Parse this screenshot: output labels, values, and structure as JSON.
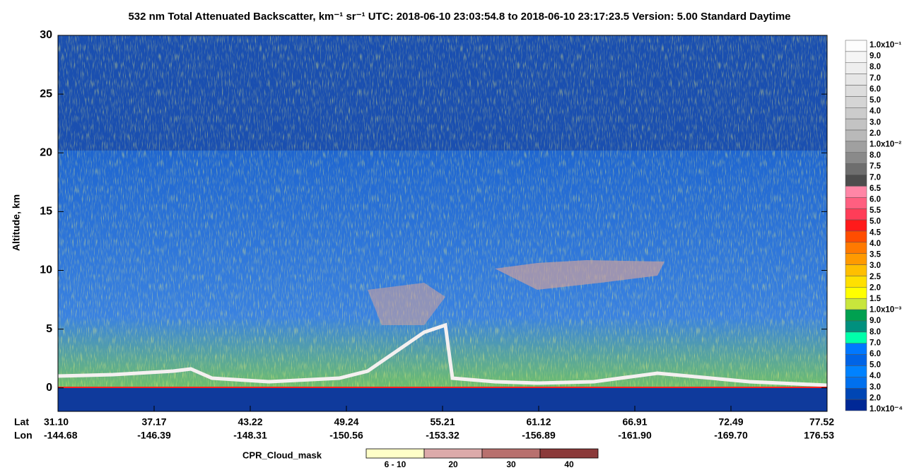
{
  "chart_data": {
    "type": "heatmap",
    "title": "532 nm Total Attenuated Backscatter, km⁻¹ sr⁻¹    UTC:  2018-06-10 23:03:54.8  to  2018-06-10 23:17:23.5    Version: 5.00  Standard  Daytime",
    "ylabel": "Altitude, km",
    "ylim": [
      -2,
      30
    ],
    "yticks": [
      0,
      5,
      10,
      15,
      20,
      25,
      30
    ],
    "x_row_labels": [
      "Lat",
      "Lon"
    ],
    "lat": [
      "31.10",
      "37.17",
      "43.22",
      "49.24",
      "55.21",
      "61.12",
      "66.91",
      "72.49",
      "77.52"
    ],
    "lon": [
      "-144.68",
      "-146.39",
      "-148.31",
      "-150.56",
      "-153.32",
      "-156.89",
      "-161.90",
      "-169.70",
      "176.53"
    ],
    "colorbar": {
      "labels": [
        "1.0x10⁻¹",
        "9.0",
        "8.0",
        "7.0",
        "6.0",
        "5.0",
        "4.0",
        "3.0",
        "2.0",
        "1.0x10⁻²",
        "8.0",
        "7.5",
        "7.0",
        "6.5",
        "6.0",
        "5.5",
        "5.0",
        "4.5",
        "4.0",
        "3.5",
        "3.0",
        "2.5",
        "2.0",
        "1.5",
        "1.0x10⁻³",
        "9.0",
        "8.0",
        "7.0",
        "6.0",
        "5.0",
        "4.0",
        "3.0",
        "2.0",
        "1.0x10⁻⁴"
      ],
      "colors": [
        "#fdfdfd",
        "#f5f5f5",
        "#eeeeee",
        "#e6e6e6",
        "#dddddd",
        "#d5d5d5",
        "#cccccc",
        "#c3c3c3",
        "#b9b9b9",
        "#a0a0a0",
        "#8a8a8a",
        "#6e6e6e",
        "#4d4d4d",
        "#ff86a6",
        "#ff5f80",
        "#ff3d58",
        "#ff1a1a",
        "#ff4d00",
        "#ff7a00",
        "#ff9a00",
        "#ffbf00",
        "#ffe000",
        "#ffff00",
        "#c8e63c",
        "#00a050",
        "#00907e",
        "#00ffaa",
        "#0078ff",
        "#0064e6",
        "#0082ff",
        "#0070ee",
        "#0046b4",
        "#002896"
      ]
    },
    "cpr_mask": {
      "title": "CPR_Cloud_mask",
      "labels": [
        "6 - 10",
        "20",
        "30",
        "40"
      ],
      "colors": [
        "#ffffc8",
        "#dcaaaa",
        "#b8706e",
        "#8b3a3a"
      ]
    }
  }
}
